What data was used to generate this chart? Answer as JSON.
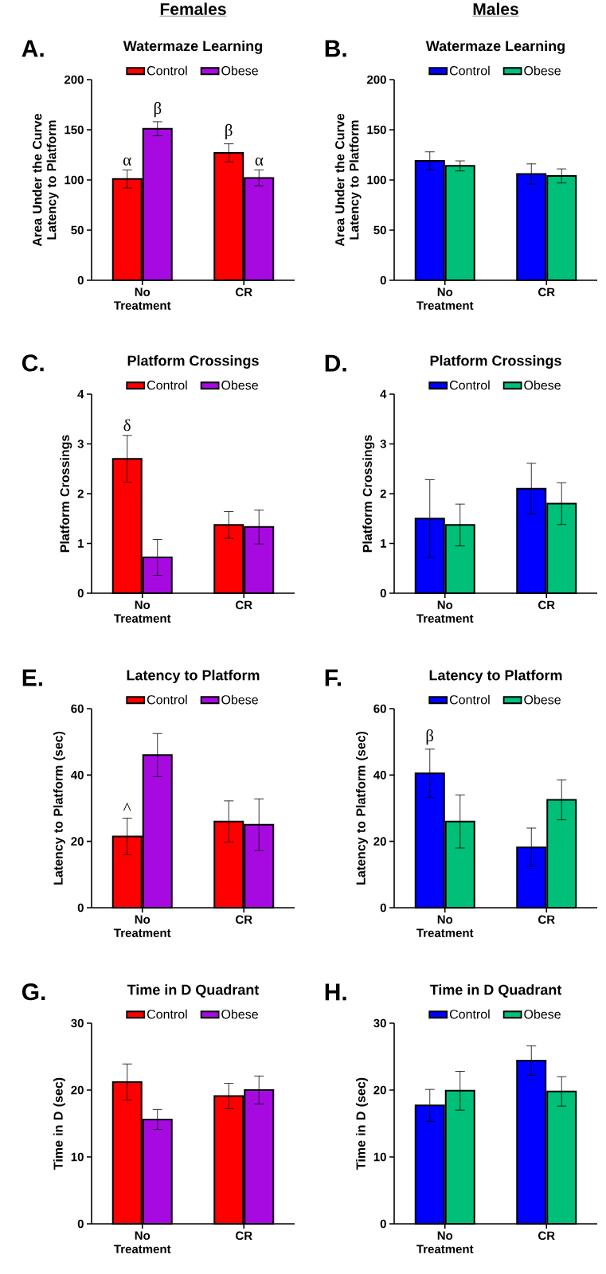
{
  "chart_data": [
    {
      "type": "bar",
      "title": "Watermaze Learning",
      "ylabel": "Area Under the Curve Latency to Platform",
      "categories": [
        "No Treatment",
        "CR"
      ],
      "ylim": [
        0,
        200
      ],
      "yticks": [
        0,
        50,
        100,
        150,
        200
      ],
      "legend": "top",
      "series": [
        {
          "name": "Control",
          "color": "#ff0000",
          "values": [
            101,
            127
          ],
          "errors": [
            9,
            9
          ]
        },
        {
          "name": "Obese",
          "color": "#a60ae0",
          "values": [
            151,
            102
          ],
          "errors": [
            7,
            8
          ]
        }
      ],
      "subtitle": "Females",
      "annotations": [
        "A.",
        "α",
        "β",
        "β",
        "α"
      ]
    },
    {
      "type": "bar",
      "title": "Watermaze  Learning",
      "ylabel": "Area Under the Curve Latency to Platform",
      "categories": [
        "No Treatment",
        "CR"
      ],
      "ylim": [
        0,
        200
      ],
      "yticks": [
        0,
        50,
        100,
        150,
        200
      ],
      "legend": "top",
      "series": [
        {
          "name": "Control",
          "color": "#0000ff",
          "values": [
            119,
            106
          ],
          "errors": [
            9,
            10
          ]
        },
        {
          "name": "Obese",
          "color": "#00bf78",
          "values": [
            114,
            104
          ],
          "errors": [
            5,
            7
          ]
        }
      ],
      "subtitle": "Males",
      "annotations": [
        "B."
      ]
    },
    {
      "type": "bar",
      "title": "Platform Crossings",
      "ylabel": "Platform Crossings",
      "categories": [
        "No Treatment",
        "CR"
      ],
      "ylim": [
        0,
        4
      ],
      "yticks": [
        0,
        1,
        2,
        3,
        4
      ],
      "legend": "top",
      "series": [
        {
          "name": "Control",
          "color": "#ff0000",
          "values": [
            2.7,
            1.37
          ],
          "errors": [
            0.47,
            0.27
          ]
        },
        {
          "name": "Obese",
          "color": "#a60ae0",
          "values": [
            0.72,
            1.33
          ],
          "errors": [
            0.36,
            0.34
          ]
        }
      ],
      "annotations": [
        "C.",
        "δ"
      ]
    },
    {
      "type": "bar",
      "title": "Platform Crossings",
      "ylabel": "Platform Crossings",
      "categories": [
        "No Treatment",
        "CR"
      ],
      "ylim": [
        0,
        4
      ],
      "yticks": [
        0,
        1,
        2,
        3,
        4
      ],
      "legend": "top",
      "series": [
        {
          "name": "Control",
          "color": "#0000ff",
          "values": [
            1.5,
            2.1
          ],
          "errors": [
            0.78,
            0.51
          ]
        },
        {
          "name": "Obese",
          "color": "#00bf78",
          "values": [
            1.37,
            1.8
          ],
          "errors": [
            0.42,
            0.42
          ]
        }
      ],
      "annotations": [
        "D."
      ]
    },
    {
      "type": "bar",
      "title": "Latency to Platform",
      "ylabel": "Latency to Platform (sec)",
      "categories": [
        "No Treatment",
        "CR"
      ],
      "ylim": [
        0,
        60
      ],
      "yticks": [
        0,
        20,
        40,
        60
      ],
      "legend": "top",
      "series": [
        {
          "name": "Control",
          "color": "#ff0000",
          "values": [
            21.5,
            26
          ],
          "errors": [
            5.5,
            6.2
          ]
        },
        {
          "name": "Obese",
          "color": "#a60ae0",
          "values": [
            46,
            25
          ],
          "errors": [
            6.5,
            7.8
          ]
        }
      ],
      "annotations": [
        "E.",
        "^"
      ]
    },
    {
      "type": "bar",
      "title": "Latency to  Platform",
      "ylabel": "Latency to Platform (sec)",
      "categories": [
        "No Treatment",
        "CR"
      ],
      "ylim": [
        0,
        60
      ],
      "yticks": [
        0,
        20,
        40,
        60
      ],
      "legend": "top",
      "series": [
        {
          "name": "Control",
          "color": "#0000ff",
          "values": [
            40.5,
            18.2
          ],
          "errors": [
            7.3,
            5.8
          ]
        },
        {
          "name": "Obese",
          "color": "#00bf78",
          "values": [
            26,
            32.5
          ],
          "errors": [
            8,
            6
          ]
        }
      ],
      "annotations": [
        "F.",
        "β"
      ]
    },
    {
      "type": "bar",
      "title": "Time in D Quadrant",
      "ylabel": "Time in D (sec)",
      "categories": [
        "No Treatment",
        "CR"
      ],
      "ylim": [
        0,
        30
      ],
      "yticks": [
        0,
        10,
        20,
        30
      ],
      "legend": "top",
      "series": [
        {
          "name": "Control",
          "color": "#ff0000",
          "values": [
            21.2,
            19.1
          ],
          "errors": [
            2.7,
            1.9
          ]
        },
        {
          "name": "Obese",
          "color": "#a60ae0",
          "values": [
            15.6,
            20
          ],
          "errors": [
            1.5,
            2.1
          ]
        }
      ],
      "annotations": [
        "G."
      ]
    },
    {
      "type": "bar",
      "title": "Time in D Quadrant",
      "ylabel": "Time in D (sec)",
      "categories": [
        "No Treatment",
        "CR"
      ],
      "ylim": [
        0,
        30
      ],
      "yticks": [
        0,
        10,
        20,
        30
      ],
      "legend": "top",
      "series": [
        {
          "name": "Control",
          "color": "#0000ff",
          "values": [
            17.7,
            24.4
          ],
          "errors": [
            2.4,
            2.2
          ]
        },
        {
          "name": "Obese",
          "color": "#00bf78",
          "values": [
            19.9,
            19.8
          ],
          "errors": [
            2.9,
            2.2
          ]
        }
      ],
      "annotations": [
        "H."
      ]
    }
  ]
}
